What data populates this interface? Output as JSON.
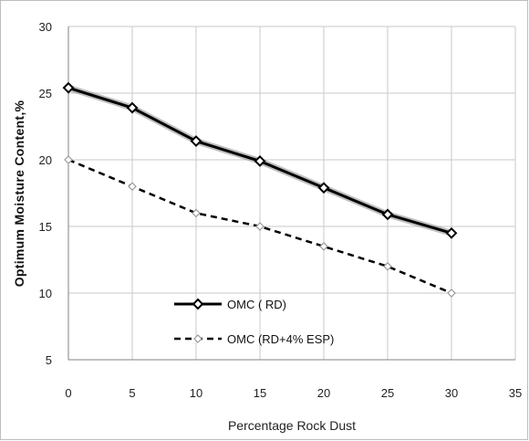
{
  "chart_data": {
    "type": "line",
    "xlabel": "Percentage Rock Dust",
    "ylabel": "Optimum Moisture Content,%",
    "xlim": [
      0,
      35
    ],
    "ylim": [
      5,
      30
    ],
    "xticks": [
      "0",
      "5",
      "10",
      "15",
      "20",
      "25",
      "30",
      "35"
    ],
    "yticks": [
      "5",
      "10",
      "15",
      "20",
      "25",
      "30"
    ],
    "grid": true,
    "legend_position": "lower-left",
    "x": [
      0,
      5,
      10,
      15,
      20,
      25,
      30
    ],
    "series": [
      {
        "name": "OMC ( RD)",
        "values": [
          25.4,
          23.9,
          21.4,
          19.9,
          17.9,
          15.9,
          14.5
        ],
        "color": "#000000",
        "style": "solid",
        "marker": "diamond-open"
      },
      {
        "name": "OMC (RD+4% ESP)",
        "values": [
          20.0,
          18.0,
          16.0,
          15.0,
          13.5,
          12.0,
          10.0
        ],
        "color": "#000000",
        "style": "dashed",
        "marker": "diamond-open"
      }
    ]
  }
}
